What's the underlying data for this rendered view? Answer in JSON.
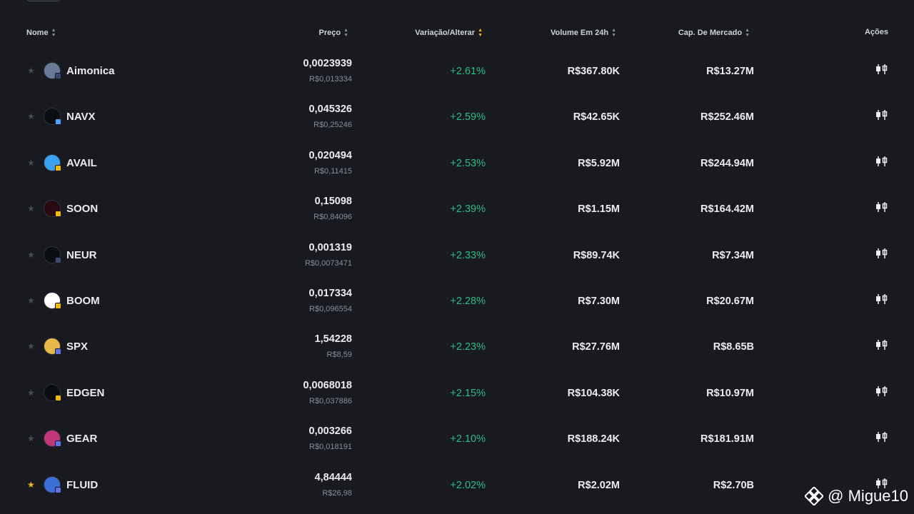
{
  "header": {
    "name": "Nome",
    "price": "Preço",
    "change": "Variação/Alterar",
    "volume": "Volume Em 24h",
    "market_cap": "Cap. De Mercado",
    "actions": "Ações"
  },
  "colors": {
    "background": "#181a20",
    "positive": "#2ebd85",
    "accent": "#f0b90b",
    "muted": "#848e9c"
  },
  "rows": [
    {
      "name": "Aimonica",
      "price": "0,0023939",
      "price_fiat": "R$0,013334",
      "change": "+2.61%",
      "volume": "R$367.80K",
      "market_cap": "R$13.27M",
      "favorite": false,
      "icon": "aimonica-icon",
      "icon_color": "#6b7a99",
      "badge_color": "#3a4a6b"
    },
    {
      "name": "NAVX",
      "price": "0,045326",
      "price_fiat": "R$0,25246",
      "change": "+2.59%",
      "volume": "R$42.65K",
      "market_cap": "R$252.46M",
      "favorite": false,
      "icon": "navx-icon",
      "icon_color": "#0b0e11",
      "badge_color": "#4da2ff"
    },
    {
      "name": "AVAIL",
      "price": "0,020494",
      "price_fiat": "R$0,11415",
      "change": "+2.53%",
      "volume": "R$5.92M",
      "market_cap": "R$244.94M",
      "favorite": false,
      "icon": "avail-icon",
      "icon_color": "#3aa0f0",
      "badge_color": "#f0b90b"
    },
    {
      "name": "SOON",
      "price": "0,15098",
      "price_fiat": "R$0,84096",
      "change": "+2.39%",
      "volume": "R$1.15M",
      "market_cap": "R$164.42M",
      "favorite": false,
      "icon": "soon-icon",
      "icon_color": "#2a0a12",
      "badge_color": "#f0b90b"
    },
    {
      "name": "NEUR",
      "price": "0,001319",
      "price_fiat": "R$0,0073471",
      "change": "+2.33%",
      "volume": "R$89.74K",
      "market_cap": "R$7.34M",
      "favorite": false,
      "icon": "neur-icon",
      "icon_color": "#0b0e11",
      "badge_color": "#3a4a6b"
    },
    {
      "name": "BOOM",
      "price": "0,017334",
      "price_fiat": "R$0,096554",
      "change": "+2.28%",
      "volume": "R$7.30M",
      "market_cap": "R$20.67M",
      "favorite": false,
      "icon": "boom-icon",
      "icon_color": "#ffffff",
      "badge_color": "#f0b90b"
    },
    {
      "name": "SPX",
      "price": "1,54228",
      "price_fiat": "R$8,59",
      "change": "+2.23%",
      "volume": "R$27.76M",
      "market_cap": "R$8.65B",
      "favorite": false,
      "icon": "spx-icon",
      "icon_color": "#e8b84a",
      "badge_color": "#6272ea"
    },
    {
      "name": "EDGEN",
      "price": "0,0068018",
      "price_fiat": "R$0,037886",
      "change": "+2.15%",
      "volume": "R$104.38K",
      "market_cap": "R$10.97M",
      "favorite": false,
      "icon": "edgen-icon",
      "icon_color": "#0b0e11",
      "badge_color": "#f0b90b"
    },
    {
      "name": "GEAR",
      "price": "0,003266",
      "price_fiat": "R$0,018191",
      "change": "+2.10%",
      "volume": "R$188.24K",
      "market_cap": "R$181.91M",
      "favorite": false,
      "icon": "gear-coin-icon",
      "icon_color": "#c2377a",
      "badge_color": "#6272ea"
    },
    {
      "name": "FLUID",
      "price": "4,84444",
      "price_fiat": "R$26,98",
      "change": "+2.02%",
      "volume": "R$2.02M",
      "market_cap": "R$2.70B",
      "favorite": true,
      "icon": "fluid-icon",
      "icon_color": "#3b6fd8",
      "badge_color": "#6272ea"
    }
  ],
  "watermark": {
    "text": "@ Migue10"
  }
}
